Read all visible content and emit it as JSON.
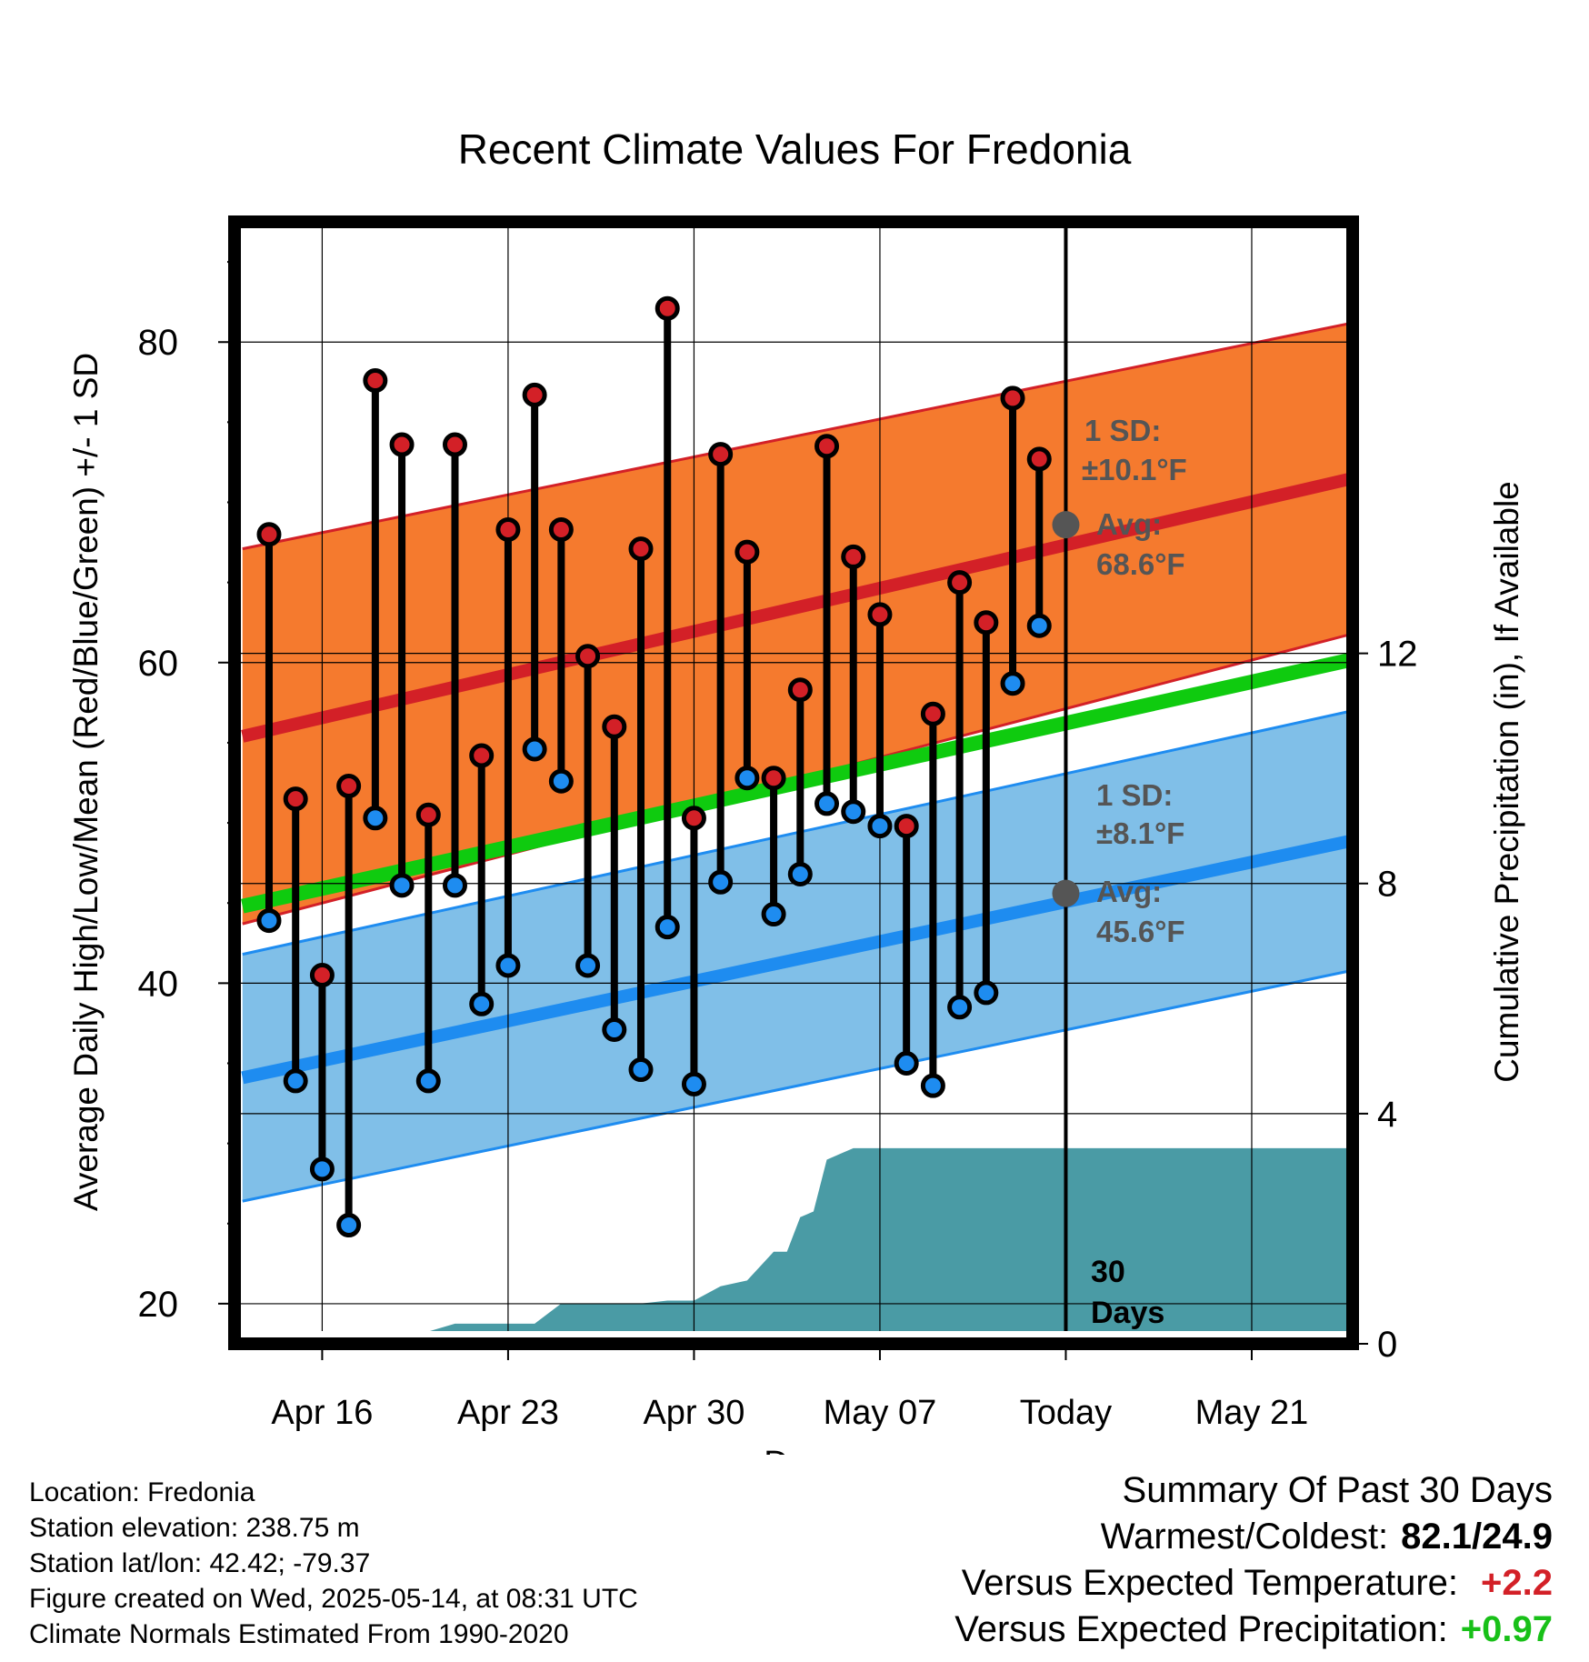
{
  "chart_data": {
    "type": "line",
    "title": "Recent Climate Values For Fredonia",
    "xlabel": "Day",
    "ylabel": "Average Daily High/Low/Mean (Red/Blue/Green) +/- 1 SD",
    "y2label": "Cumulative Precipitation (in), If Available",
    "ylim": [
      17.5,
      87.5
    ],
    "y2lim": [
      0,
      19.5
    ],
    "xlim": [
      -3.3,
      38.8
    ],
    "yticks": [
      "20",
      "40",
      "60",
      "80"
    ],
    "y2ticks": [
      "0",
      "4",
      "8",
      "12"
    ],
    "x_ticks": [
      {
        "day": 0,
        "label": "Apr 16"
      },
      {
        "day": 7,
        "label": "Apr 23"
      },
      {
        "day": 14,
        "label": "Apr 30"
      },
      {
        "day": 21,
        "label": "May 07"
      },
      {
        "day": 28,
        "label": "Today"
      },
      {
        "day": 35,
        "label": "May 21"
      }
    ],
    "today_day": 28,
    "window_label": "30 Days",
    "highs": [
      68.0,
      51.5,
      40.5,
      52.3,
      77.6,
      73.6,
      50.5,
      73.6,
      54.2,
      68.3,
      76.7,
      68.3,
      60.4,
      56.0,
      67.1,
      82.1,
      50.3,
      73.0,
      66.9,
      52.8,
      58.3,
      73.5,
      66.6,
      63.0,
      49.8,
      56.8,
      65.0,
      62.5,
      76.5,
      72.7
    ],
    "lows": [
      43.9,
      33.9,
      28.4,
      24.9,
      50.3,
      46.1,
      33.9,
      46.1,
      38.7,
      41.1,
      54.6,
      52.6,
      41.1,
      37.1,
      34.6,
      43.5,
      33.7,
      46.3,
      52.8,
      44.3,
      46.8,
      51.2,
      50.7,
      49.8,
      35.0,
      33.6,
      38.5,
      39.4,
      58.7,
      62.3
    ],
    "normals": {
      "days": [
        -3,
        38.8
      ],
      "high_avg": [
        55.4,
        71.5
      ],
      "high_sd": [
        11.7,
        9.7
      ],
      "low_avg": [
        34.1,
        48.9
      ],
      "low_sd": [
        7.7,
        8.1
      ],
      "mean_avg": [
        44.8,
        60.2
      ]
    },
    "precip": {
      "days": [
        2.4,
        3.0,
        3.9,
        5.0,
        6.0,
        7.0,
        8.0,
        9.0,
        10.0,
        11.0,
        12.0,
        13.0,
        14.0,
        15.0,
        16.0,
        17.0,
        17.5,
        18.0,
        18.5,
        19.0,
        19.5,
        20.0,
        21.0,
        28.0,
        38.8
      ],
      "values": [
        0,
        0.2,
        0.2,
        0.35,
        0.35,
        0.35,
        0.35,
        0.7,
        0.7,
        0.7,
        0.7,
        0.75,
        0.75,
        1.0,
        1.1,
        1.6,
        1.6,
        2.2,
        2.3,
        3.2,
        3.3,
        3.4,
        3.4,
        3.4,
        3.4
      ]
    },
    "annotations": {
      "high_sd_line1": "1 SD:",
      "high_sd_line2": "±10.1°F",
      "high_avg_line1": "Avg:",
      "high_avg_line2": "68.6°F",
      "high_avg_today": 68.6,
      "low_sd_line1": "1 SD:",
      "low_sd_line2": "±8.1°F",
      "low_avg_line1": "Avg:",
      "low_avg_line2": "45.6°F",
      "low_avg_today": 45.6
    },
    "colors": {
      "high_band": "#f57a2e",
      "high_line": "#d32027",
      "low_band": "#80bfe8",
      "low_line": "#1e8cf0",
      "mean_line": "#0fcb0f",
      "precip_fill": "#4a9ba5",
      "high_dot": "#d32027",
      "low_dot": "#1e8cf0",
      "annotation": "#555555"
    }
  },
  "metadata": {
    "location": "Location: Fredonia",
    "elevation": "Station elevation: 238.75 m",
    "latlon": "Station lat/lon: 42.42; -79.37",
    "created": "Figure created on Wed, 2025-05-14, at 08:31 UTC",
    "normals": "Climate Normals Estimated From 1990-2020"
  },
  "summary": {
    "heading": "Summary Of Past 30 Days",
    "warmest_coldest_label": "Warmest/Coldest:",
    "warmest_coldest_value": "82.1/24.9",
    "temp_label": "Versus Expected Temperature:",
    "temp_value": "+2.2",
    "temp_color": "#d32027",
    "precip_label": "Versus Expected Precipitation:",
    "precip_value": "+0.97",
    "precip_color": "#18c018"
  }
}
